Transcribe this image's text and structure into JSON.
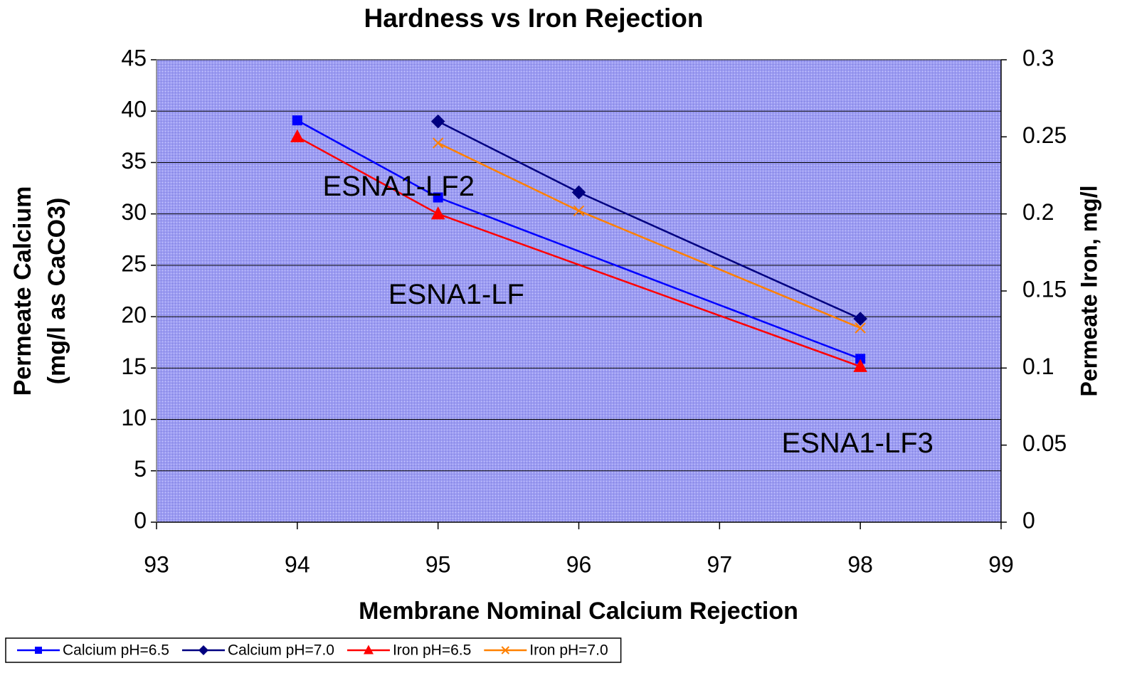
{
  "chart_data": {
    "type": "line",
    "title": "Hardness vs Iron Rejection",
    "xlabel": "Membrane Nominal Calcium Rejection",
    "ylabel": [
      "Permeate Calcium",
      "(mg/l as CaCO3)"
    ],
    "y2label": "Permeate Iron, mg/l",
    "xlim": [
      93,
      99
    ],
    "xticks": [
      93,
      94,
      95,
      96,
      97,
      98,
      99
    ],
    "ylim": [
      0,
      45
    ],
    "yticks": [
      0,
      5,
      10,
      15,
      20,
      25,
      30,
      35,
      40,
      45
    ],
    "y2lim": [
      0,
      0.3
    ],
    "y2ticks": [
      0,
      0.05,
      0.1,
      0.15,
      0.2,
      0.25,
      0.3
    ],
    "grid": true,
    "legend": "bottom-left",
    "series": [
      {
        "name": "Calcium pH=6.5",
        "color": "#0000ff",
        "marker": "square",
        "x": [
          94,
          95,
          98
        ],
        "values": [
          39.1,
          31.6,
          15.9
        ]
      },
      {
        "name": "Calcium pH=7.0",
        "color": "#000080",
        "marker": "diamond",
        "x": [
          95,
          96,
          98
        ],
        "values": [
          39.0,
          32.1,
          19.8
        ]
      },
      {
        "name": "Iron pH=6.5",
        "color": "#ff0000",
        "marker": "triangle",
        "axis": "y2",
        "x": [
          94,
          95,
          98
        ],
        "values": [
          0.25,
          0.2,
          0.101
        ]
      },
      {
        "name": "Iron pH=7.0",
        "color": "#ff8000",
        "marker": "cross",
        "axis": "y2",
        "x": [
          95,
          96,
          98
        ],
        "values": [
          0.246,
          0.202,
          0.126
        ]
      }
    ],
    "annotations": [
      {
        "text": "ESNA1-LF2",
        "x": 94.72,
        "y": 32.5
      },
      {
        "text": "ESNA1-LF",
        "x": 95.13,
        "y": 22.0
      },
      {
        "text": "ESNA1-LF3",
        "x": 97.98,
        "y": 7.5
      }
    ]
  }
}
